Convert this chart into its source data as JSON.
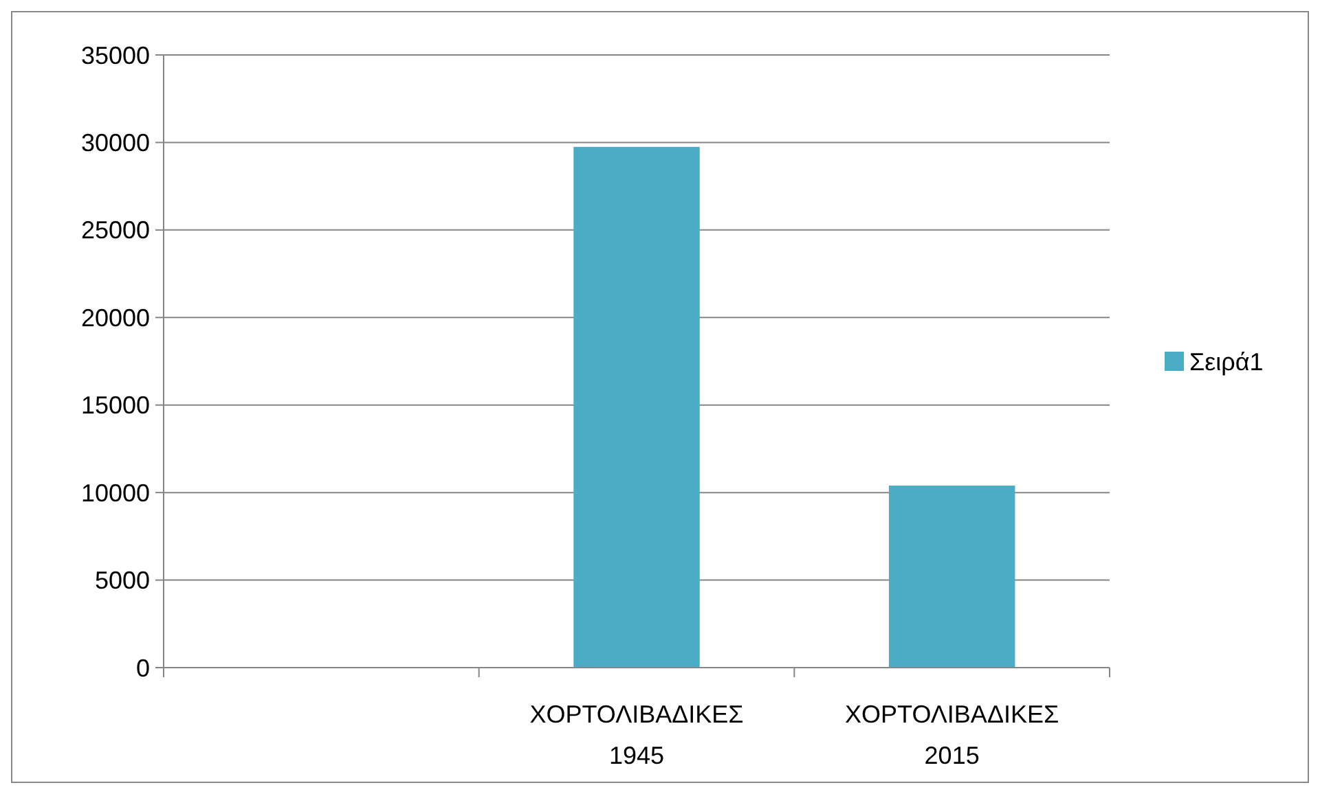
{
  "chart_data": {
    "type": "bar",
    "categories": [
      null,
      "ΧΟΡΤΟΛΙΒΑΔΙΚΕΣ 1945",
      "ΧΟΡΤΟΛΙΒΑΔΙΚΕΣ 2015"
    ],
    "series": [
      {
        "name": "Σειρά1",
        "color": "#4bacc6",
        "values": [
          null,
          29750,
          10400
        ]
      }
    ],
    "ylim": [
      0,
      35000
    ],
    "yticks": [
      0,
      5000,
      10000,
      15000,
      20000,
      25000,
      30000,
      35000
    ],
    "grid": "y",
    "legend": "right"
  }
}
